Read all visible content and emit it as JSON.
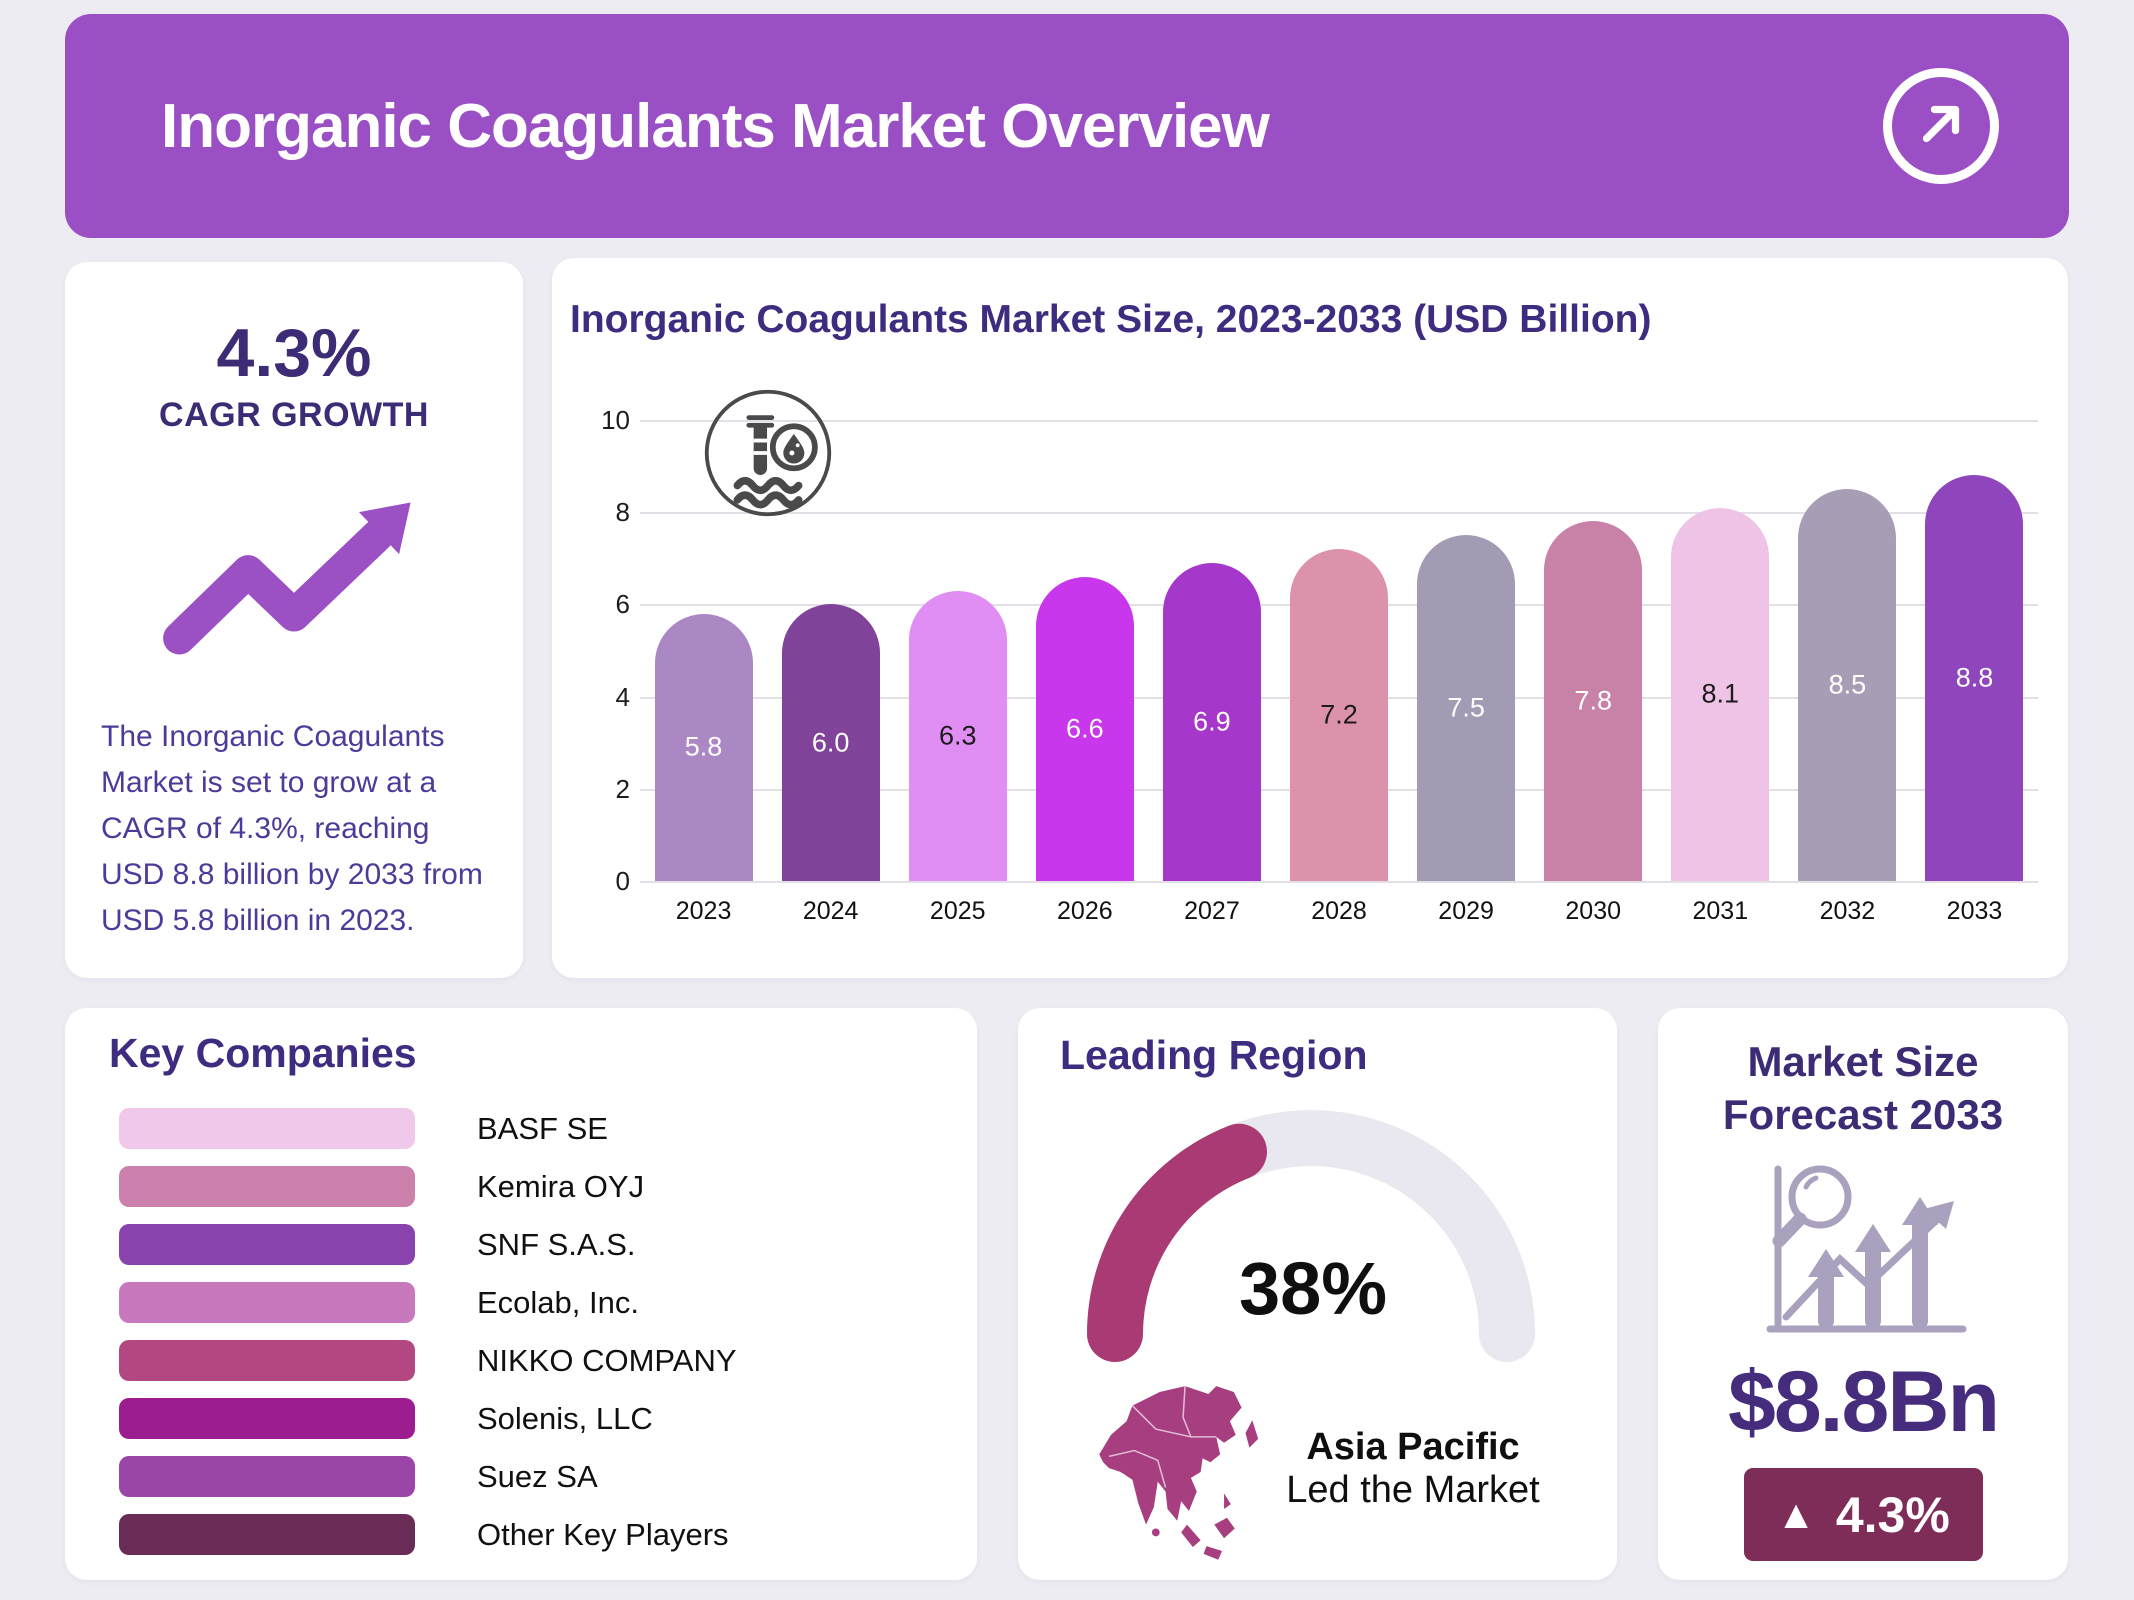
{
  "page": {
    "background": "#EDECF2"
  },
  "header": {
    "title": "Inorganic Coagulants Market Overview",
    "bg_color": "#9A4FC4"
  },
  "cagr_card": {
    "value": "4.3%",
    "label": "CAGR GROWTH",
    "description": "The Inorganic Coagulants Market is set to grow at a CAGR of 4.3%, reaching USD 8.8 billion by 2033 from USD 5.8 billion in 2023."
  },
  "chart_card": {
    "title": "Inorganic Coagulants Market Size, 2023-2033 (USD Billion)"
  },
  "chart_data": {
    "type": "bar",
    "title": "Inorganic Coagulants Market Size, 2023-2033 (USD Billion)",
    "categories": [
      "2023",
      "2024",
      "2025",
      "2026",
      "2027",
      "2028",
      "2029",
      "2030",
      "2031",
      "2032",
      "2033"
    ],
    "values": [
      5.8,
      6.0,
      6.3,
      6.6,
      6.9,
      7.2,
      7.5,
      7.8,
      8.1,
      8.5,
      8.8
    ],
    "value_labels": [
      "5.8",
      "6.0",
      "6.3",
      "6.6",
      "6.9",
      "7.2",
      "7.5",
      "7.8",
      "8.1",
      "8.5",
      "8.8"
    ],
    "bar_colors": [
      "#AB88C3",
      "#81439A",
      "#E08EF4",
      "#C837EB",
      "#A537CB",
      "#DD92AB",
      "#A39BB3",
      "#C982A7",
      "#EFC3E6",
      "#A79EB6",
      "#8F46BC"
    ],
    "label_colors": [
      "#FFFFFF",
      "#FFFFFF",
      "#1B1B1B",
      "#FFFFFF",
      "#FFFFFF",
      "#1B1B1B",
      "#FFFFFF",
      "#FFFFFF",
      "#1B1B1B",
      "#FFFFFF",
      "#FFFFFF"
    ],
    "xlabel": "",
    "ylabel": "",
    "ylim": [
      0,
      10
    ],
    "yticks": [
      0,
      2,
      4,
      6,
      8,
      10
    ],
    "grid": true,
    "legend_position": "none"
  },
  "key_companies": {
    "title": "Key Companies",
    "items": [
      {
        "name": "BASF SE",
        "color": "#F0C9EA"
      },
      {
        "name": "Kemira OYJ",
        "color": "#CB81AB"
      },
      {
        "name": "SNF S.A.S.",
        "color": "#8843AD"
      },
      {
        "name": "Ecolab, Inc.",
        "color": "#C878BC"
      },
      {
        "name": "NIKKO COMPANY",
        "color": "#B34781"
      },
      {
        "name": "Solenis, LLC",
        "color": "#9C1D8F"
      },
      {
        "name": "Suez SA",
        "color": "#9C45A9"
      },
      {
        "name": "Other Key Players",
        "color": "#692C56"
      }
    ]
  },
  "leading_region": {
    "title": "Leading Region",
    "share_label": "38%",
    "share_value": 38,
    "region": "Asia Pacific",
    "region_subtitle": "Led the Market",
    "gauge_fill": "#A93A74",
    "gauge_track": "#E9E7EF",
    "map_color": "#A63E80"
  },
  "forecast_card": {
    "title": "Market Size Forecast 2033",
    "value": "$8.8Bn",
    "up_arrow": "▲",
    "growth": "4.3%",
    "badge_color": "#7E2D59"
  }
}
